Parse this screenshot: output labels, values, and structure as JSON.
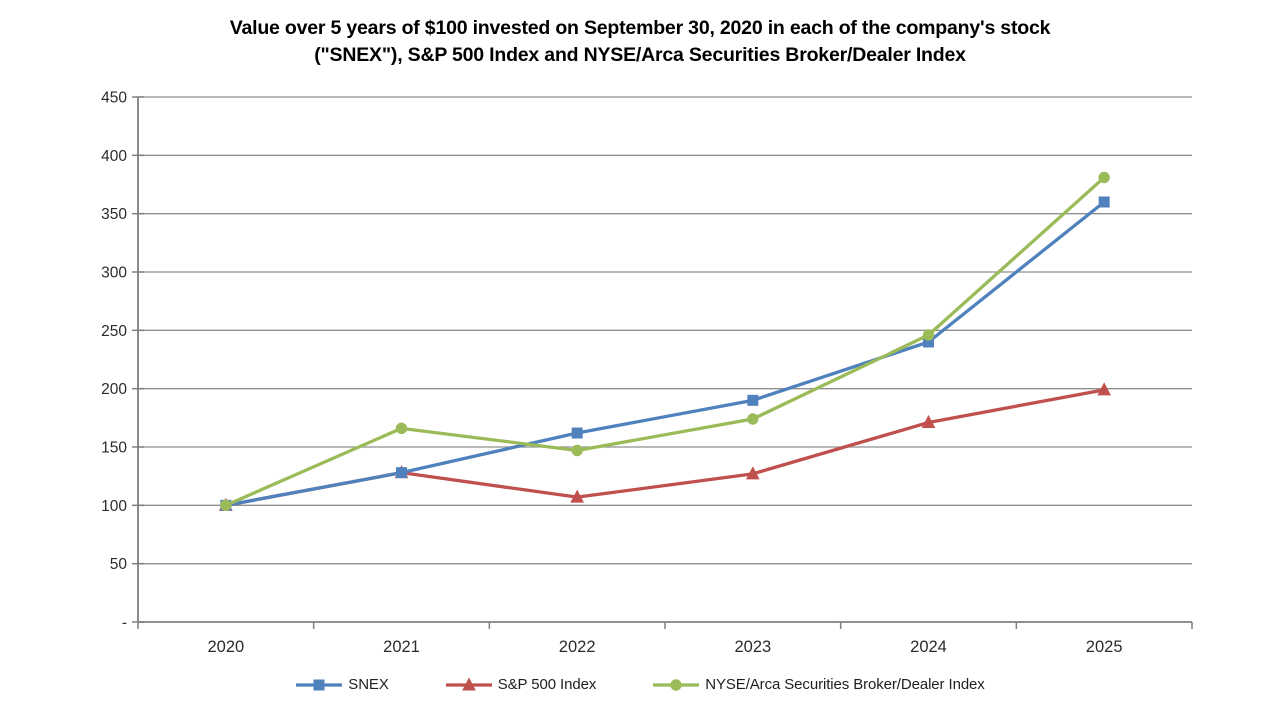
{
  "title": {
    "line1": "Value over 5 years of $100 invested on September 30, 2020 in each of the company's stock",
    "line2": "(\"SNEX\"), S&P 500 Index and NYSE/Arca Securities Broker/Dealer Index"
  },
  "chart_data": {
    "type": "line",
    "x": [
      "2020",
      "2021",
      "2022",
      "2023",
      "2024",
      "2025"
    ],
    "series": [
      {
        "name": "SNEX",
        "color": "#4F81BD",
        "marker": "square",
        "values": [
          100,
          128,
          162,
          190,
          240,
          360
        ]
      },
      {
        "name": "S&P 500 Index",
        "color": "#C0504D",
        "marker": "triangle",
        "values": [
          100,
          128,
          107,
          127,
          171,
          199
        ]
      },
      {
        "name": "NYSE/Arca Securities Broker/Dealer Index",
        "color": "#9BBB59",
        "marker": "circle",
        "values": [
          100,
          166,
          147,
          174,
          246,
          381
        ]
      }
    ],
    "draw_order": [
      "S&P 500 Index",
      "SNEX",
      "NYSE/Arca Securities Broker/Dealer Index"
    ],
    "ylim": [
      0,
      450
    ],
    "ytick_step": 50,
    "ytick_labels": [
      "-",
      "50",
      "100",
      "150",
      "200",
      "250",
      "300",
      "350",
      "400",
      "450"
    ],
    "grid": true,
    "legend_position": "bottom"
  },
  "colors": {
    "background": "#ffffff",
    "axis": "#7f7f7f",
    "gridline": "#8f8f8f",
    "tick_text": "#2b2b2b",
    "title_text": "#000000"
  }
}
